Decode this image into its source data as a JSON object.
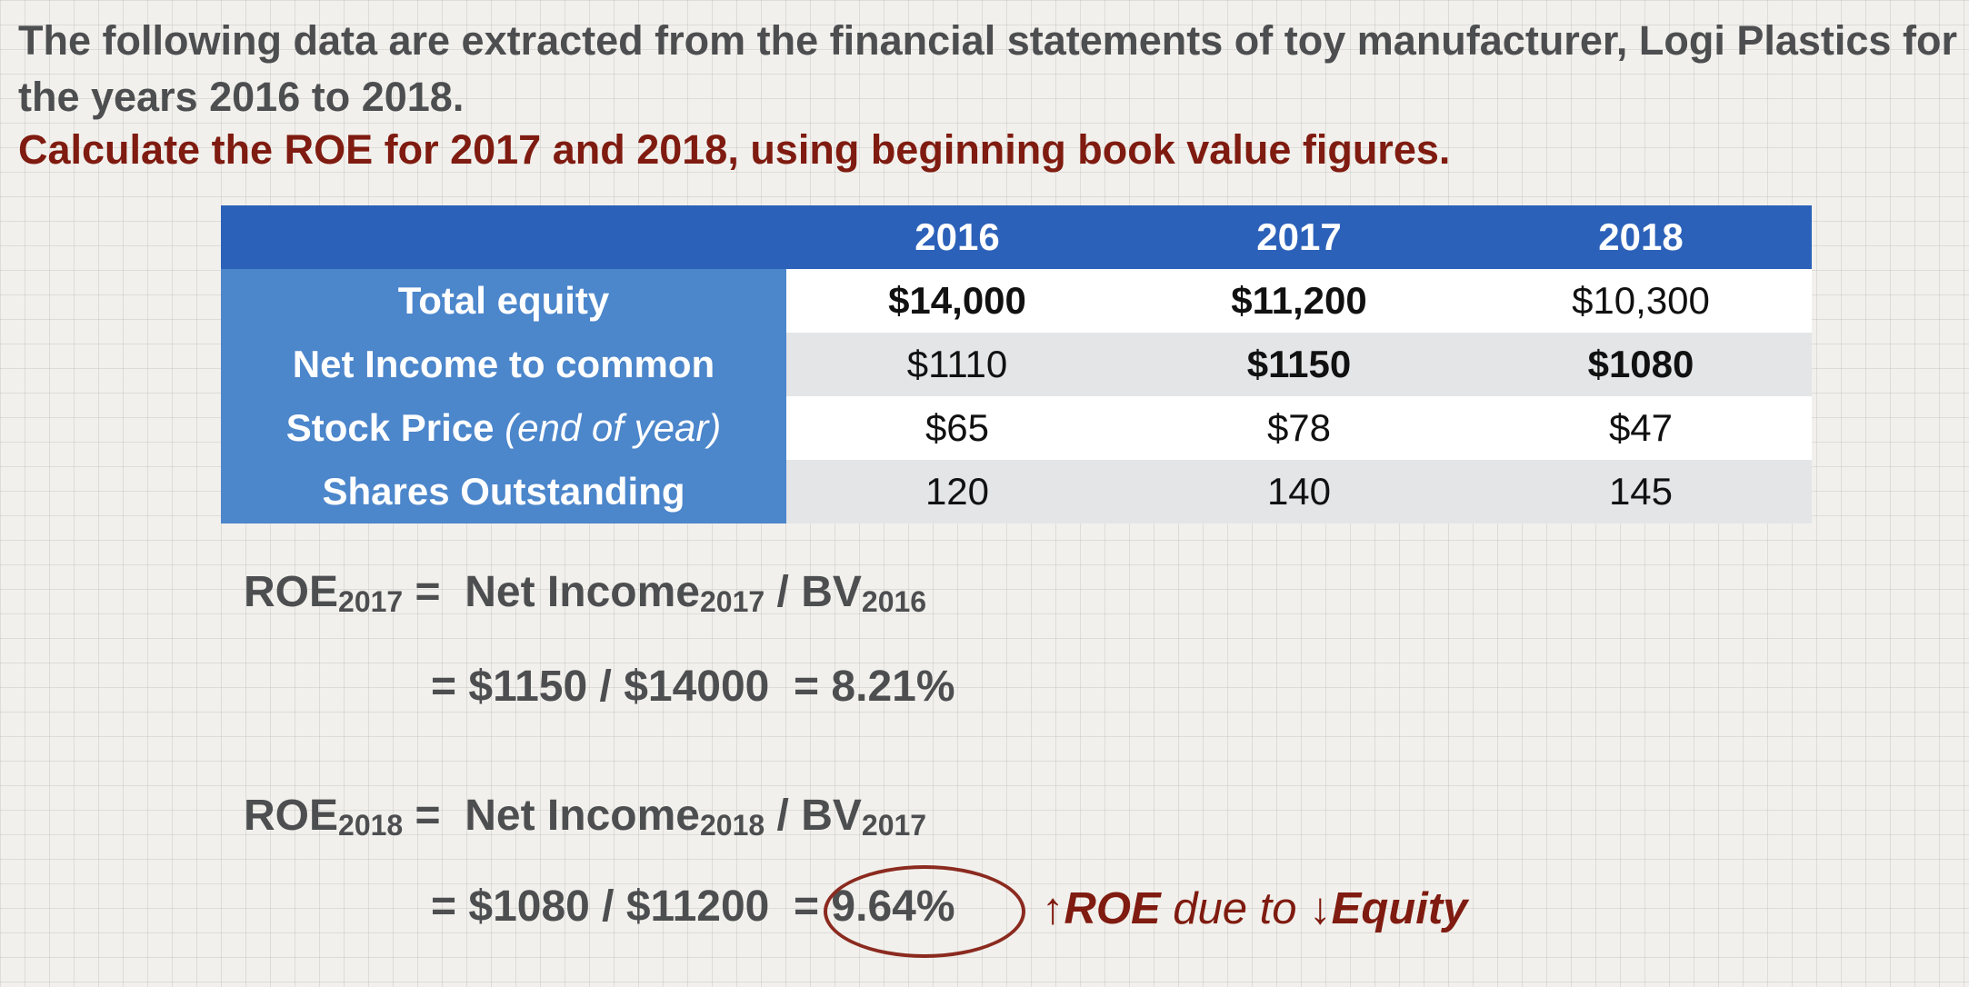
{
  "intro": "The following data are extracted from the financial statements of toy manufacturer, Logi Plastics for the years 2016 to 2018.",
  "task": "Calculate the ROE for 2017 and 2018, using beginning book value figures.",
  "table": {
    "years": [
      "2016",
      "2017",
      "2018"
    ],
    "rows": [
      {
        "label": "Total equity",
        "qualifier": "",
        "values": [
          "$14,000",
          "$11,200",
          "$10,300"
        ]
      },
      {
        "label": "Net Income to common",
        "qualifier": "",
        "values": [
          "$1110",
          "$1150",
          "$1080"
        ]
      },
      {
        "label": "Stock Price",
        "qualifier": "(end of year)",
        "values": [
          "$65",
          "$78",
          "$47"
        ]
      },
      {
        "label": "Shares Outstanding",
        "qualifier": "",
        "values": [
          "120",
          "140",
          "145"
        ]
      }
    ]
  },
  "eq2017": {
    "roe": "ROE",
    "roe_sub": "2017",
    "equals": "=",
    "ni": "Net Income",
    "ni_sub": "2017",
    "slash": "/",
    "bv": "BV",
    "bv_sub": "2016",
    "calc": "= $1150 / $14000",
    "result": "= 8.21%"
  },
  "eq2018": {
    "roe": "ROE",
    "roe_sub": "2018",
    "equals": "=",
    "ni": "Net Income",
    "ni_sub": "2018",
    "slash": "/",
    "bv": "BV",
    "bv_sub": "2017",
    "calc": "= $1080 / $11200",
    "result": "= 9.64%"
  },
  "note": {
    "up_arrow": "↑",
    "roe": "ROE",
    "due_to": " due to ",
    "down_arrow": "↓",
    "equity": "Equity"
  },
  "colors": {
    "text_gray": "#4d4e50",
    "accent_red": "#7f1b10",
    "table_header": "#2c61b9",
    "table_label": "#4c86cb",
    "row_alt": "#e4e5e7"
  }
}
